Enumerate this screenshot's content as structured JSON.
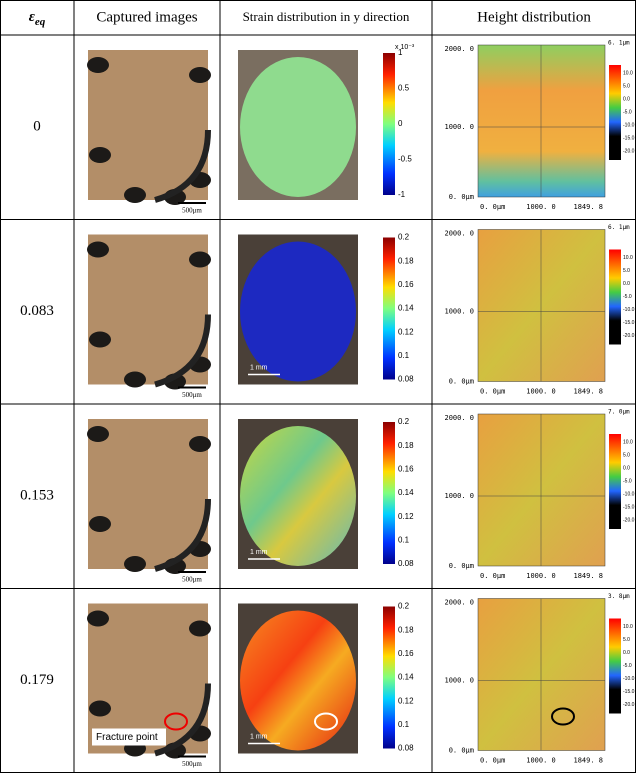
{
  "header": {
    "symbol": "ε",
    "subscript": "eq",
    "columns": [
      "Captured images",
      "Strain distribution in y direction",
      "Height distribution"
    ]
  },
  "rows": [
    {
      "label": "0",
      "scale_bar": "500μm",
      "strain_colorbar": [
        "1",
        "0.5",
        "0",
        "-0.5",
        "-1"
      ],
      "strain_multiplier": "x 10⁻³",
      "height_max": "6. 1μm"
    },
    {
      "label": "0.083",
      "scale_bar": "500μm",
      "strain_colorbar": [
        "0.2",
        "0.18",
        "0.16",
        "0.14",
        "0.12",
        "0.1",
        "0.08"
      ],
      "strain_scale": "1 mm",
      "height_max": "6. 1μm"
    },
    {
      "label": "0.153",
      "scale_bar": "500μm",
      "strain_colorbar": [
        "0.2",
        "0.18",
        "0.16",
        "0.14",
        "0.12",
        "0.1",
        "0.08"
      ],
      "strain_scale": "1 mm",
      "height_max": "7. 0μm"
    },
    {
      "label": "0.179",
      "scale_bar": "500μm",
      "strain_colorbar": [
        "0.2",
        "0.18",
        "0.16",
        "0.14",
        "0.12",
        "0.1",
        "0.08"
      ],
      "strain_scale": "1 mm",
      "height_max": "3. 8μm",
      "annotation": "Fracture point"
    }
  ],
  "height_axes": {
    "y_labels": [
      "2000. 0",
      "1000. 0",
      "0. 0μm"
    ],
    "x_labels": [
      "0. 0μm",
      "1000. 0",
      "1849. 8"
    ],
    "legend": [
      "10.0",
      "5.0",
      "0.0",
      "-5.0",
      "-10.0",
      "-15.0",
      "-20.0"
    ]
  }
}
